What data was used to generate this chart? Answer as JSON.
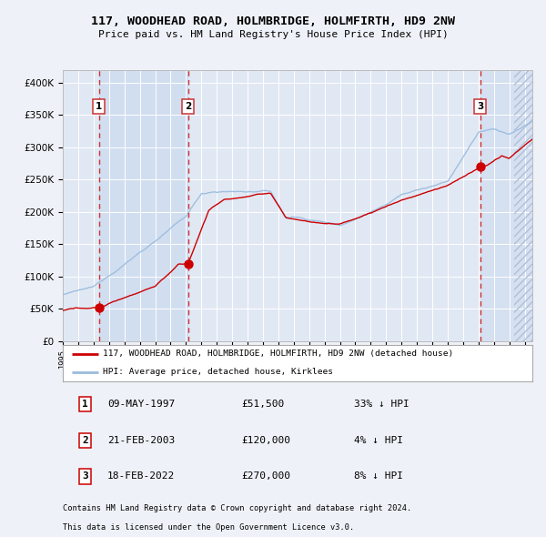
{
  "title": "117, WOODHEAD ROAD, HOLMBRIDGE, HOLMFIRTH, HD9 2NW",
  "subtitle": "Price paid vs. HM Land Registry's House Price Index (HPI)",
  "ylim": [
    0,
    420000
  ],
  "xlim_start": 1995.0,
  "xlim_end": 2025.5,
  "yticks": [
    0,
    50000,
    100000,
    150000,
    200000,
    250000,
    300000,
    350000,
    400000
  ],
  "ytick_labels": [
    "£0",
    "£50K",
    "£100K",
    "£150K",
    "£200K",
    "£250K",
    "£300K",
    "£350K",
    "£400K"
  ],
  "bg_color": "#eef2f8",
  "plot_bg": "#e0e8f4",
  "grid_color": "#ffffff",
  "red_line_color": "#cc0000",
  "blue_line_color": "#99bbdd",
  "sale_marker_color": "#cc0000",
  "dashed_line_color": "#cc3333",
  "shade_color": "#c8d8ee",
  "hatch_color": "#b0c0d8",
  "purchases": [
    {
      "label": "1",
      "date": 1997.36,
      "price": 51500
    },
    {
      "label": "2",
      "date": 2003.14,
      "price": 120000
    },
    {
      "label": "3",
      "date": 2022.12,
      "price": 270000
    }
  ],
  "legend_line1": "117, WOODHEAD ROAD, HOLMBRIDGE, HOLMFIRTH, HD9 2NW (detached house)",
  "legend_line2": "HPI: Average price, detached house, Kirklees",
  "footer1": "Contains HM Land Registry data © Crown copyright and database right 2024.",
  "footer2": "This data is licensed under the Open Government Licence v3.0.",
  "table_rows": [
    [
      "1",
      "09-MAY-1997",
      "£51,500",
      "33% ↓ HPI"
    ],
    [
      "2",
      "21-FEB-2003",
      "£120,000",
      "4% ↓ HPI"
    ],
    [
      "3",
      "18-FEB-2022",
      "£270,000",
      "8% ↓ HPI"
    ]
  ]
}
